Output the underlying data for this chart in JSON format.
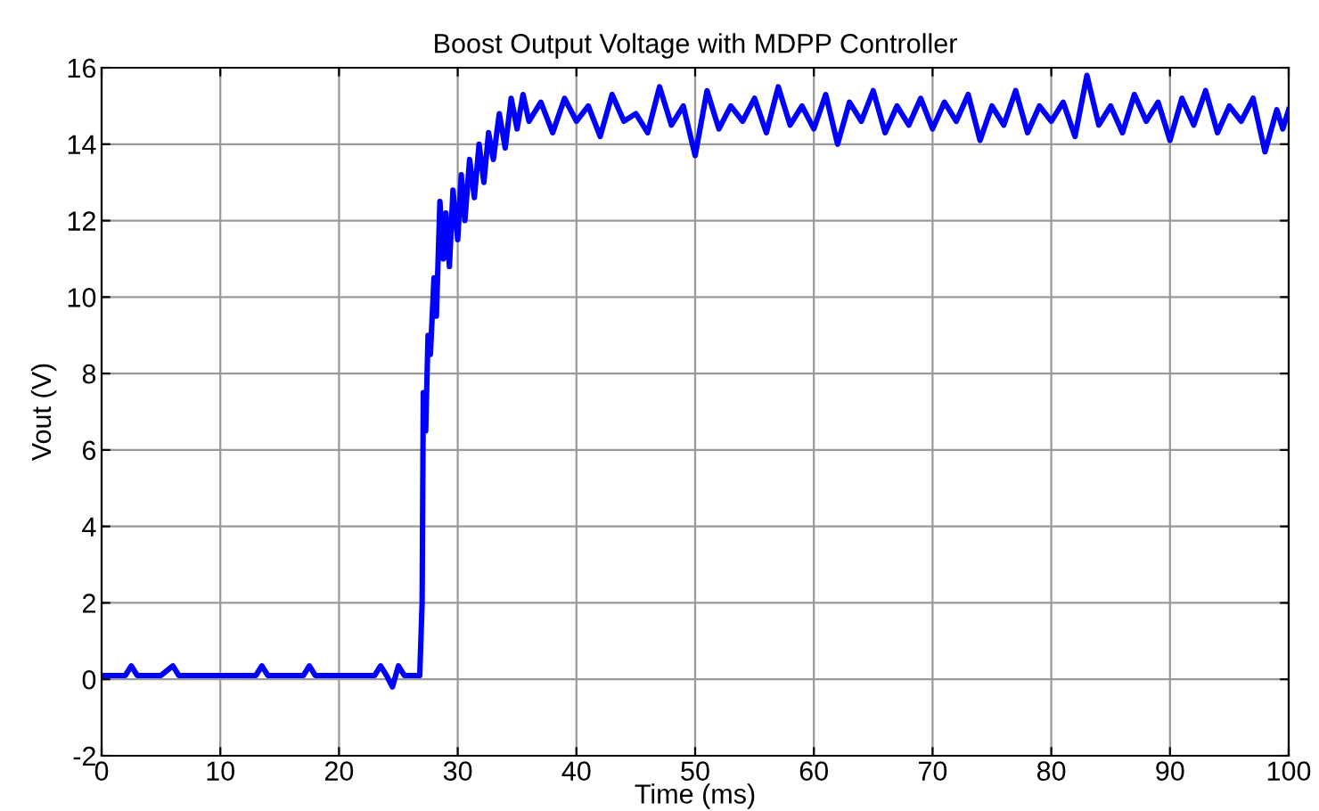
{
  "chart_data": {
    "type": "line",
    "title": "Boost Output Voltage with MDPP Controller",
    "xlabel": "Time (ms)",
    "ylabel": "Vout (V)",
    "xlim": [
      0,
      100
    ],
    "ylim": [
      -2,
      16
    ],
    "xticks": [
      0,
      10,
      20,
      30,
      40,
      50,
      60,
      70,
      80,
      90,
      100
    ],
    "yticks": [
      -2,
      0,
      2,
      4,
      6,
      8,
      10,
      12,
      14,
      16
    ],
    "grid": true,
    "line_style": "solid",
    "series": [
      {
        "color": "#0000ff",
        "x": [
          0,
          1,
          2,
          2.5,
          3,
          4,
          5,
          6,
          6.5,
          7,
          8,
          9,
          10,
          11,
          12,
          13,
          13.5,
          14,
          15,
          16,
          17,
          17.5,
          18,
          19,
          20,
          21,
          22,
          23,
          23.5,
          24,
          24.5,
          25,
          25.5,
          26,
          26.5,
          26.8,
          27,
          27.1,
          27.3,
          27.5,
          27.7,
          28,
          28.2,
          28.5,
          28.8,
          29,
          29.3,
          29.6,
          30,
          30.3,
          30.6,
          31,
          31.4,
          31.8,
          32.2,
          32.6,
          33,
          33.5,
          34,
          34.5,
          35,
          35.5,
          36,
          37,
          38,
          39,
          40,
          41,
          42,
          43,
          44,
          45,
          46,
          47,
          48,
          49,
          50,
          51,
          52,
          53,
          54,
          55,
          56,
          57,
          58,
          59,
          60,
          61,
          62,
          63,
          64,
          65,
          66,
          67,
          68,
          69,
          70,
          71,
          72,
          73,
          74,
          75,
          76,
          77,
          78,
          79,
          80,
          81,
          82,
          83,
          84,
          85,
          86,
          87,
          88,
          89,
          90,
          91,
          92,
          93,
          94,
          95,
          96,
          97,
          98,
          99,
          99.5,
          100
        ],
        "values": [
          0.1,
          0.1,
          0.1,
          0.35,
          0.1,
          0.1,
          0.1,
          0.35,
          0.1,
          0.1,
          0.1,
          0.1,
          0.1,
          0.1,
          0.1,
          0.1,
          0.35,
          0.1,
          0.1,
          0.1,
          0.1,
          0.35,
          0.1,
          0.1,
          0.1,
          0.1,
          0.1,
          0.1,
          0.35,
          0.1,
          -0.2,
          0.35,
          0.1,
          0.1,
          0.1,
          0.1,
          2.0,
          7.5,
          6.5,
          9.0,
          8.5,
          10.5,
          9.5,
          12.5,
          11.0,
          12.2,
          10.8,
          12.8,
          11.5,
          13.2,
          12.0,
          13.6,
          12.6,
          14.0,
          13.0,
          14.3,
          13.6,
          14.8,
          13.9,
          15.2,
          14.4,
          15.3,
          14.6,
          15.1,
          14.3,
          15.2,
          14.6,
          15.0,
          14.2,
          15.3,
          14.6,
          14.8,
          14.3,
          15.5,
          14.5,
          15.0,
          13.7,
          15.4,
          14.4,
          15.0,
          14.6,
          15.2,
          14.3,
          15.5,
          14.5,
          15.0,
          14.4,
          15.3,
          14.0,
          15.1,
          14.6,
          15.4,
          14.3,
          15.0,
          14.5,
          15.2,
          14.4,
          15.1,
          14.6,
          15.3,
          14.1,
          15.0,
          14.5,
          15.4,
          14.3,
          15.0,
          14.6,
          15.1,
          14.2,
          15.8,
          14.5,
          15.0,
          14.3,
          15.3,
          14.6,
          15.1,
          14.1,
          15.2,
          14.5,
          15.4,
          14.3,
          15.0,
          14.6,
          15.2,
          13.8,
          14.9,
          14.4,
          14.9
        ]
      }
    ]
  }
}
